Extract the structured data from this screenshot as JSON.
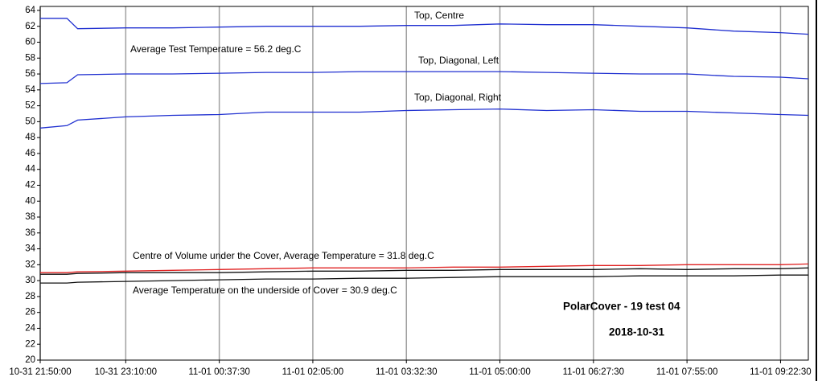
{
  "chart_data": {
    "type": "line",
    "x": [
      "10-31 21:50:00",
      "10-31 22:15:00",
      "10-31 22:25:00",
      "10-31 23:10:00",
      "10-31 23:53:45",
      "11-01 00:37:30",
      "11-01 01:21:15",
      "11-01 02:05:00",
      "11-01 02:48:45",
      "11-01 03:32:30",
      "11-01 04:16:15",
      "11-01 05:00:00",
      "11-01 05:43:45",
      "11-01 06:27:30",
      "11-01 07:11:15",
      "11-01 07:55:00",
      "11-01 08:38:45",
      "11-01 09:22:30",
      "11-01 09:48:30"
    ],
    "series": [
      {
        "name": "Top, Centre",
        "color": "#1f2fd0",
        "values": [
          63,
          63,
          61.7,
          61.8,
          61.8,
          61.9,
          62,
          62,
          62,
          62.1,
          62.1,
          62.3,
          62.2,
          62.2,
          62,
          61.8,
          61.4,
          61.2,
          61
        ]
      },
      {
        "name": "Top, Diagonal, Left",
        "color": "#1f2fd0",
        "values": [
          54.8,
          54.9,
          55.9,
          56,
          56,
          56.1,
          56.2,
          56.2,
          56.3,
          56.3,
          56.3,
          56.3,
          56.2,
          56.1,
          56,
          56,
          55.7,
          55.6,
          55.4
        ]
      },
      {
        "name": "Top, Diagonal, Right",
        "color": "#1f2fd0",
        "values": [
          49.2,
          49.5,
          50.2,
          50.6,
          50.8,
          50.9,
          51.2,
          51.2,
          51.2,
          51.4,
          51.5,
          51.6,
          51.4,
          51.5,
          51.3,
          51.3,
          51.1,
          50.9,
          50.8
        ]
      },
      {
        "color": "#e02020",
        "values": [
          31,
          31,
          31.1,
          31.2,
          31.3,
          31.4,
          31.5,
          31.6,
          31.6,
          31.6,
          31.7,
          31.7,
          31.8,
          31.9,
          31.9,
          32,
          32,
          32,
          32.1
        ]
      },
      {
        "color": "#111111",
        "values": [
          30.8,
          30.8,
          30.9,
          31,
          31,
          31,
          31.1,
          31.2,
          31.2,
          31.3,
          31.3,
          31.4,
          31.4,
          31.4,
          31.5,
          31.4,
          31.5,
          31.5,
          31.6
        ]
      },
      {
        "color": "#111111",
        "values": [
          29.7,
          29.7,
          29.8,
          29.9,
          30,
          30.1,
          30.2,
          30.2,
          30.3,
          30.3,
          30.4,
          30.5,
          30.5,
          30.5,
          30.6,
          30.6,
          30.6,
          30.7,
          30.7
        ]
      }
    ],
    "annotations": [
      "Average Test Temperature = 56.2 deg.C",
      "Centre of Volume under the Cover, Average Temperature = 31.8 deg.C",
      "Average Temperature on the underside of Cover = 30.9 deg.C",
      "PolarCover - 19  test 04",
      "2018-10-31"
    ],
    "xlim": [
      "10-31 21:50:00",
      "11-01 09:48:30"
    ],
    "xticks": [
      "10-31 21:50:00",
      "10-31 23:10:00",
      "11-01 00:37:30",
      "11-01 02:05:00",
      "11-01 03:32:30",
      "11-01 05:00:00",
      "11-01 06:27:30",
      "11-01 07:55:00",
      "11-01 09:22:30"
    ],
    "ylim": [
      20,
      64.5
    ],
    "yticks": [
      20,
      22,
      24,
      26,
      28,
      30,
      32,
      34,
      36,
      38,
      40,
      42,
      44,
      46,
      48,
      50,
      52,
      54,
      56,
      58,
      60,
      62,
      64
    ],
    "grid": "x"
  }
}
